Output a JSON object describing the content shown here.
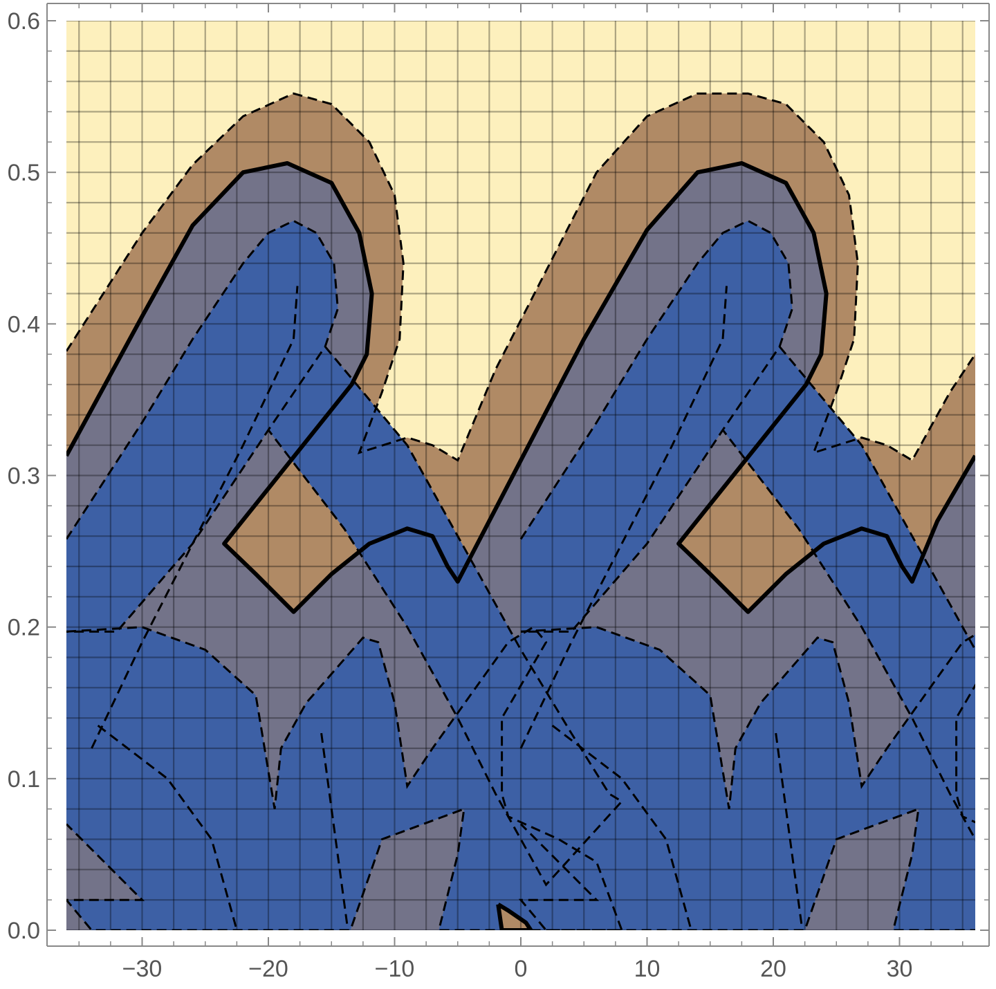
{
  "chart_data": {
    "type": "contour",
    "title": "",
    "xlabel": "",
    "ylabel": "",
    "xlim": [
      -36,
      36
    ],
    "ylim": [
      0,
      0.6
    ],
    "grid": true,
    "x_ticks": [
      {
        "value": -30,
        "label": "−30"
      },
      {
        "value": -20,
        "label": "−20"
      },
      {
        "value": -10,
        "label": "−10"
      },
      {
        "value": 0,
        "label": "0"
      },
      {
        "value": 10,
        "label": "10"
      },
      {
        "value": 20,
        "label": "20"
      },
      {
        "value": 30,
        "label": "30"
      }
    ],
    "y_ticks": [
      {
        "value": 0.0,
        "label": "0.0"
      },
      {
        "value": 0.1,
        "label": "0.1"
      },
      {
        "value": 0.2,
        "label": "0.2"
      },
      {
        "value": 0.3,
        "label": "0.3"
      },
      {
        "value": 0.4,
        "label": "0.4"
      },
      {
        "value": 0.5,
        "label": "0.5"
      },
      {
        "value": 0.6,
        "label": "0.6"
      }
    ],
    "x_grid_step": 2.5,
    "y_grid_step": 0.02,
    "colors": {
      "background_region": "#FDF0BD",
      "brown_band": "#B08A65",
      "gray_band": "#737389",
      "blue_band": "#3D60A5",
      "contour_line": "#000000",
      "grid_line": "#000000"
    },
    "regions": [
      {
        "name": "gray-lower-band",
        "color": "#737389",
        "points": [
          [
            -36,
            0.313
          ],
          [
            -23,
            0.505
          ],
          [
            -15,
            0.495
          ],
          [
            -18.5,
            0.395
          ],
          [
            -33,
            0.2
          ],
          [
            -36,
            0.17
          ],
          [
            -36,
            0.07
          ],
          [
            -30.5,
            0.02
          ],
          [
            -35,
            0
          ],
          [
            36,
            0
          ],
          [
            36,
            0.07
          ],
          [
            30,
            0.09
          ],
          [
            27,
            0.12
          ],
          [
            29.5,
            0.2
          ],
          [
            36,
            0.31
          ],
          [
            22,
            0.505
          ],
          [
            20,
            0.47
          ],
          [
            15,
            0.47
          ],
          [
            10,
            0.255
          ],
          [
            0,
            0.04
          ],
          [
            -6,
            0
          ]
        ],
        "smooth": false
      }
    ]
  }
}
